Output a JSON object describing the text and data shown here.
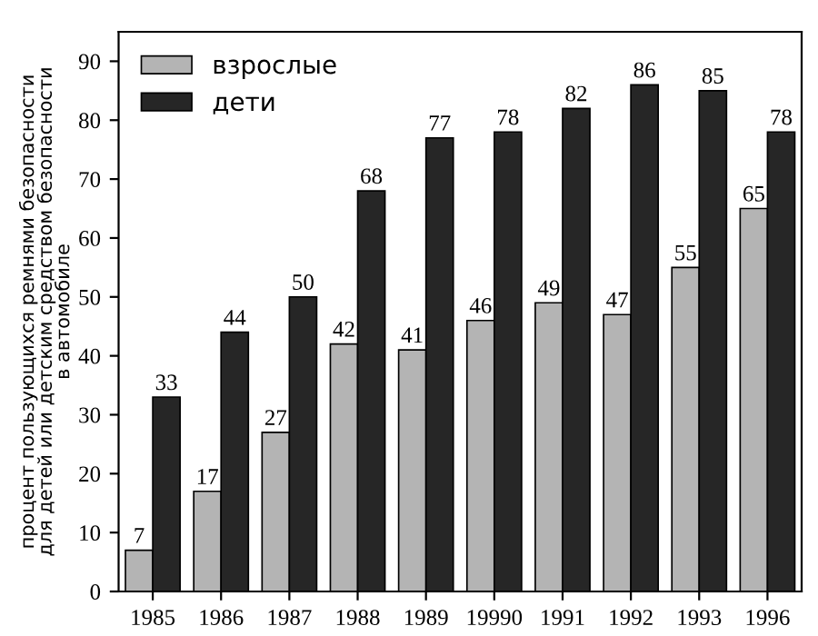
{
  "chart_data": {
    "type": "bar",
    "ylabel": "процент пользующихся ремнями безопасности\nдля детей или детским средством безопасности\nв автомобиле",
    "categories": [
      "1985",
      "1986",
      "1987",
      "1988",
      "1989",
      "19990",
      "1991",
      "1992",
      "1993",
      "1996"
    ],
    "series": [
      {
        "name": "взрослые",
        "color": "#b4b4b4",
        "values": [
          7,
          17,
          27,
          42,
          41,
          46,
          49,
          47,
          55,
          65
        ]
      },
      {
        "name": "дети",
        "color": "#262626",
        "values": [
          33,
          44,
          50,
          68,
          77,
          78,
          82,
          86,
          85,
          78
        ]
      }
    ],
    "ylim": [
      0,
      95
    ],
    "yticks": [
      0,
      10,
      20,
      30,
      40,
      50,
      60,
      70,
      80,
      90
    ],
    "data_labels": true,
    "legend": "top left",
    "grid": false
  }
}
